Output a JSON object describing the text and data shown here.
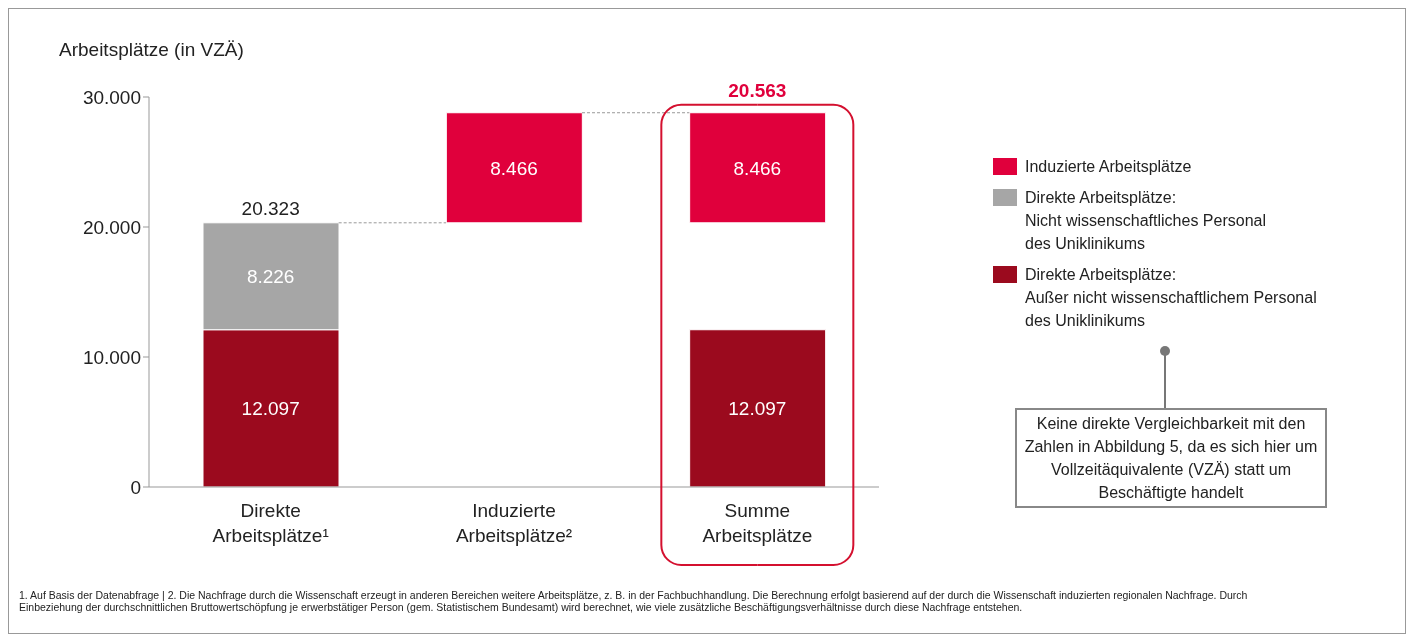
{
  "chart_data": {
    "type": "bar",
    "ylabel": "Arbeitsplätze (in VZÄ)",
    "categories": [
      "Direkte Arbeitsplätze¹",
      "Induzierte Arbeitsplätze²",
      "Summe Arbeitsplätze"
    ],
    "series": [
      {
        "name": "Direkte Arbeitsplätze:\nAußer nicht wissenschaftlichem Personal\ndes Uniklinikums",
        "color": "#9b0a1e",
        "values": [
          12097,
          null,
          12097
        ],
        "base": [
          0,
          null,
          0
        ],
        "value_labels": [
          "12.097",
          null,
          "12.097"
        ]
      },
      {
        "name": "Direkte Arbeitsplätze:\nNicht wissenschaftliches Personal\ndes Uniklinikums",
        "color": "#a6a6a6",
        "values": [
          8226,
          null,
          null
        ],
        "base": [
          12097,
          null,
          null
        ],
        "value_labels": [
          "8.226",
          null,
          null
        ]
      },
      {
        "name": "Induzierte Arbeitsplätze",
        "color": "#e0003c",
        "values": [
          null,
          8466,
          8466
        ],
        "base": [
          null,
          20323,
          20323
        ],
        "value_labels": [
          null,
          "8.466",
          "8.466"
        ]
      }
    ],
    "totals": [
      "20.323",
      null,
      "20.563"
    ],
    "ylim": [
      0,
      30000
    ],
    "yticks": [
      {
        "value": 0,
        "label": "0"
      },
      {
        "value": 10000,
        "label": "10.000"
      },
      {
        "value": 20000,
        "label": "20.000"
      },
      {
        "value": 30000,
        "label": "30.000"
      }
    ],
    "grid": false,
    "legend": "right",
    "annotations": [
      "1. Auf Basis der Datenabfrage  |  2. Die Nachfrage durch die Wissenschaft erzeugt in anderen Bereichen weitere Arbeitsplätze, z. B. in der Fachbuchhandlung. Die Berechnung erfolgt basierend auf der durch die Wissenschaft induzierten regionalen Nachfrage. Durch Einbeziehung der durchschnittlichen Bruttowertschöpfung je erwerbstätiger Person (gem. Statistischem Bundesamt) wird berechnet, wie viele zusätzliche Beschäftigungsverhältnisse durch diese Nachfrage entstehen.",
      "Keine direkte Vergleichbarkeit mit den Zahlen in Abbildung 5, da es sich hier um Vollzeitäquivalente (VZÄ) statt um Beschäftigte handelt"
    ]
  }
}
